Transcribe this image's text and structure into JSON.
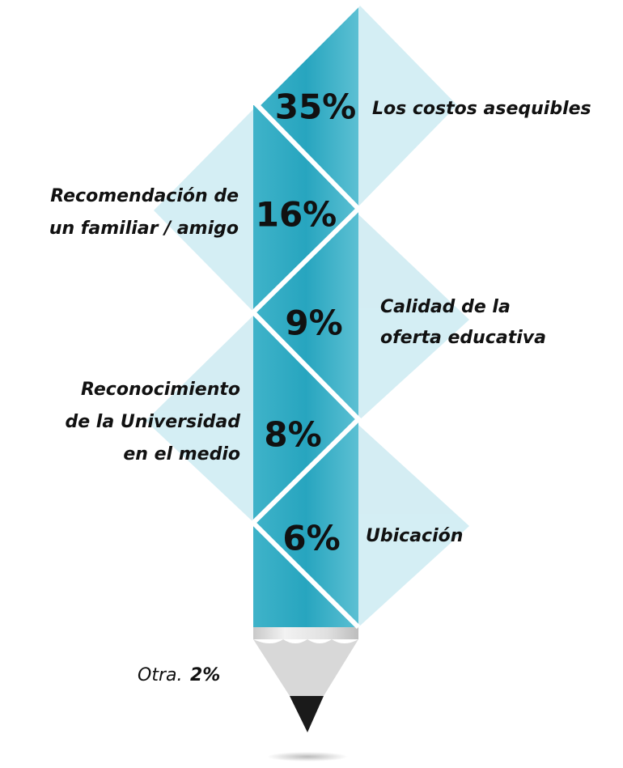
{
  "items": [
    {
      "percent": "35%",
      "label": [
        "Los costos asequibles"
      ]
    },
    {
      "percent": "16%",
      "label": [
        "Recomendación de",
        "un familiar / amigo"
      ]
    },
    {
      "percent": "9%",
      "label": [
        "Calidad de la",
        "oferta educativa"
      ]
    },
    {
      "percent": "8%",
      "label": [
        "Reconocimiento",
        "de la Universidad",
        "en el medio"
      ]
    },
    {
      "percent": "6%",
      "label": [
        "Ubicación"
      ]
    }
  ],
  "other": {
    "label": "Otra.",
    "percent": "2%"
  }
}
